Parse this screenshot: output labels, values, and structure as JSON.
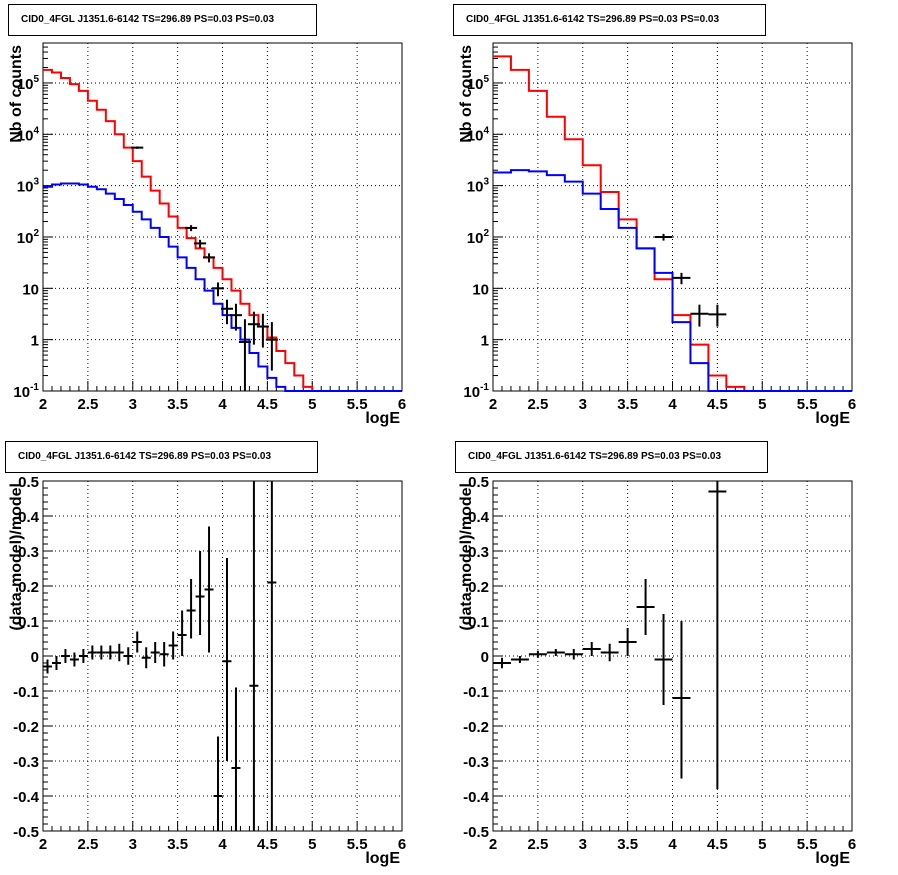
{
  "chart_data": [
    {
      "panel": "top-left",
      "type": "line",
      "title": "CID0_4FGL J1351.6-6142 TS=296.89 PS=0.03 PS=0.03",
      "xlabel": "logE",
      "ylabel": "Nb of counts",
      "xlim": [
        2,
        6
      ],
      "ylim": [
        0.1,
        600000
      ],
      "yscale": "log",
      "grid": true,
      "xticks": [
        "2",
        "2.5",
        "3",
        "3.5",
        "4",
        "4.5",
        "5",
        "5.5",
        "6"
      ],
      "yticks": [
        {
          "v": 0.1,
          "base": "10",
          "exp": "-1"
        },
        {
          "v": 1,
          "label": "1"
        },
        {
          "v": 10,
          "label": "10"
        },
        {
          "v": 100,
          "base": "10",
          "exp": "2"
        },
        {
          "v": 1000,
          "base": "10",
          "exp": "3"
        },
        {
          "v": 10000,
          "base": "10",
          "exp": "4"
        },
        {
          "v": 100000,
          "base": "10",
          "exp": "5"
        }
      ],
      "series": [
        {
          "kind": "hist",
          "color": "#ff0000",
          "bin_start": 2.0,
          "bin_width": 0.1,
          "values": [
            180000,
            160000,
            125000,
            95000,
            70000,
            45000,
            30000,
            18000,
            10000,
            5500,
            3000,
            1500,
            800,
            450,
            250,
            150,
            95,
            60,
            40,
            25,
            15,
            9,
            5,
            3,
            1.8,
            1.1,
            0.6,
            0.35,
            0.2,
            0.12,
            0.1,
            0.1,
            0.1,
            0.1,
            0.1,
            0.1,
            0.1,
            0.1,
            0.1,
            0.1
          ]
        },
        {
          "kind": "hist",
          "color": "#0000ff",
          "bin_start": 2.0,
          "bin_width": 0.1,
          "values": [
            950,
            1050,
            1100,
            1100,
            1050,
            950,
            850,
            700,
            550,
            420,
            310,
            220,
            150,
            100,
            65,
            40,
            25,
            15,
            9,
            5,
            3,
            1.7,
            1,
            0.55,
            0.3,
            0.18,
            0.12,
            0.1,
            0.1,
            0.1,
            0.1,
            0.1,
            0.1,
            0.1,
            0.1,
            0.1,
            0.1,
            0.1,
            0.1,
            0.1
          ]
        },
        {
          "kind": "points",
          "color": "#000000",
          "x": [
            3.05,
            3.65,
            3.75,
            3.85,
            3.95,
            4.05,
            4.15,
            4.25,
            4.35,
            4.45,
            4.55
          ],
          "y": [
            5500,
            150,
            75,
            40,
            10,
            4,
            3,
            0.9,
            2,
            1.8,
            1
          ],
          "ylo": [
            5200,
            130,
            62,
            32,
            7,
            2,
            1.5,
            0.1,
            0.8,
            0.7,
            0.25
          ],
          "yhi": [
            5800,
            170,
            88,
            48,
            13,
            6,
            5,
            2.5,
            3.5,
            3.2,
            2.2
          ]
        }
      ]
    },
    {
      "panel": "top-right",
      "type": "line",
      "title": "CID0_4FGL J1351.6-6142 TS=296.89 PS=0.03 PS=0.03",
      "xlabel": "logE",
      "ylabel": "Nb of counts",
      "xlim": [
        2,
        6
      ],
      "ylim": [
        0.1,
        600000
      ],
      "yscale": "log",
      "grid": true,
      "xticks": [
        "2",
        "2.5",
        "3",
        "3.5",
        "4",
        "4.5",
        "5",
        "5.5",
        "6"
      ],
      "yticks": [
        {
          "v": 0.1,
          "base": "10",
          "exp": "-1"
        },
        {
          "v": 1,
          "label": "1"
        },
        {
          "v": 10,
          "label": "10"
        },
        {
          "v": 100,
          "base": "10",
          "exp": "2"
        },
        {
          "v": 1000,
          "base": "10",
          "exp": "3"
        },
        {
          "v": 10000,
          "base": "10",
          "exp": "4"
        },
        {
          "v": 100000,
          "base": "10",
          "exp": "5"
        }
      ],
      "series": [
        {
          "kind": "hist",
          "color": "#ff0000",
          "bin_start": 2.0,
          "bin_width": 0.2,
          "values": [
            330000,
            180000,
            70000,
            22000,
            8000,
            2500,
            750,
            220,
            60,
            15,
            3,
            0.8,
            0.2,
            0.12,
            0.1,
            0.1,
            0.1,
            0.1,
            0.1,
            0.1
          ]
        },
        {
          "kind": "hist",
          "color": "#0000ff",
          "bin_start": 2.0,
          "bin_width": 0.2,
          "values": [
            1800,
            2000,
            1900,
            1600,
            1200,
            700,
            350,
            150,
            60,
            20,
            2.2,
            0.35,
            0.1,
            0.1,
            0.1,
            0.1,
            0.1,
            0.1,
            0.1,
            0.1
          ]
        },
        {
          "kind": "points",
          "color": "#000000",
          "x": [
            3.9,
            4.1,
            4.3,
            4.5
          ],
          "y": [
            100,
            16,
            3.2,
            3.1
          ],
          "ylo": [
            85,
            12,
            1.8,
            1.8
          ],
          "yhi": [
            115,
            20,
            4.8,
            4.8
          ],
          "xerr": 0.1
        }
      ]
    },
    {
      "panel": "bottom-left",
      "type": "scatter",
      "title": "CID0_4FGL J1351.6-6142 TS=296.89 PS=0.03 PS=0.03",
      "xlabel": "logE",
      "ylabel": "(data-model)/model",
      "xlim": [
        2,
        6
      ],
      "ylim": [
        -0.5,
        0.5
      ],
      "grid": true,
      "xticks": [
        "2",
        "2.5",
        "3",
        "3.5",
        "4",
        "4.5",
        "5",
        "5.5",
        "6"
      ],
      "yticks": [
        "-0.5",
        "-0.4",
        "-0.3",
        "-0.2",
        "-0.1",
        "0",
        "0.1",
        "0.2",
        "0.3",
        "0.4",
        "0.5"
      ],
      "series": [
        {
          "kind": "points",
          "color": "#000000",
          "xerr": 0.05,
          "x": [
            2.05,
            2.15,
            2.25,
            2.35,
            2.45,
            2.55,
            2.65,
            2.75,
            2.85,
            2.95,
            3.05,
            3.15,
            3.25,
            3.35,
            3.45,
            3.55,
            3.65,
            3.75,
            3.85,
            3.95,
            4.05,
            4.15,
            4.35,
            4.55
          ],
          "y": [
            -0.03,
            -0.02,
            0.0,
            -0.01,
            0.0,
            0.01,
            0.01,
            0.01,
            0.01,
            0.0,
            0.04,
            -0.005,
            0.01,
            0.005,
            0.03,
            0.06,
            0.13,
            0.17,
            0.19,
            -0.4,
            -0.015,
            -0.32,
            -0.085,
            0.21
          ],
          "ylo": [
            -0.05,
            -0.04,
            -0.02,
            -0.03,
            -0.02,
            -0.01,
            -0.01,
            -0.01,
            -0.015,
            -0.025,
            0.01,
            -0.035,
            -0.02,
            -0.03,
            -0.01,
            0.0,
            0.05,
            0.06,
            0.01,
            -0.5,
            -0.3,
            -0.5,
            -0.5,
            -0.5
          ],
          "yhi": [
            -0.01,
            0.0,
            0.02,
            0.01,
            0.02,
            0.03,
            0.03,
            0.03,
            0.035,
            0.025,
            0.07,
            0.025,
            0.04,
            0.04,
            0.07,
            0.13,
            0.22,
            0.3,
            0.37,
            -0.23,
            0.28,
            -0.09,
            0.5,
            0.5
          ]
        }
      ]
    },
    {
      "panel": "bottom-right",
      "type": "scatter",
      "title": "CID0_4FGL J1351.6-6142 TS=296.89 PS=0.03 PS=0.03",
      "xlabel": "logE",
      "ylabel": "(data-model)/model",
      "xlim": [
        2,
        6
      ],
      "ylim": [
        -0.5,
        0.5
      ],
      "grid": true,
      "xticks": [
        "2",
        "2.5",
        "3",
        "3.5",
        "4",
        "4.5",
        "5",
        "5.5",
        "6"
      ],
      "yticks": [
        "-0.5",
        "-0.4",
        "-0.3",
        "-0.2",
        "-0.1",
        "0",
        "0.1",
        "0.2",
        "0.3",
        "0.4",
        "0.5"
      ],
      "series": [
        {
          "kind": "points",
          "color": "#000000",
          "xerr": 0.1,
          "x": [
            2.1,
            2.3,
            2.5,
            2.7,
            2.9,
            3.1,
            3.3,
            3.5,
            3.7,
            3.9,
            4.1,
            4.5
          ],
          "y": [
            -0.02,
            -0.01,
            0.005,
            0.01,
            0.005,
            0.02,
            0.01,
            0.04,
            0.14,
            -0.01,
            -0.12,
            0.47
          ],
          "ylo": [
            -0.035,
            -0.02,
            -0.005,
            0.0,
            -0.01,
            0.0,
            -0.015,
            0.0,
            0.06,
            -0.14,
            -0.35,
            -0.38
          ],
          "yhi": [
            -0.005,
            0.0,
            0.015,
            0.02,
            0.02,
            0.04,
            0.035,
            0.08,
            0.22,
            0.12,
            0.1,
            0.5
          ]
        }
      ]
    }
  ]
}
